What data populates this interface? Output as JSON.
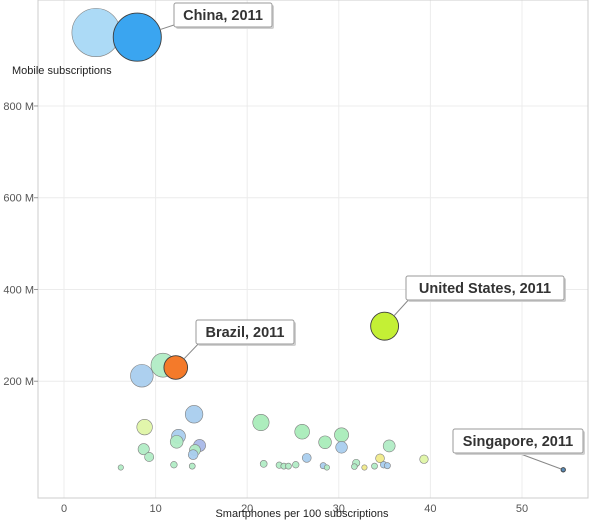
{
  "chart_data": {
    "type": "scatter",
    "subtype": "bubble",
    "xlabel": "Smartphones per 100 subscriptions",
    "ylabel": "Mobile subscriptions",
    "xlim": [
      -3,
      57
    ],
    "ylim": [
      -20,
      1000
    ],
    "x_ticks": [
      0,
      10,
      20,
      30,
      40,
      50
    ],
    "x_tick_labels": [
      "0",
      "10",
      "20",
      "30",
      "40",
      "50"
    ],
    "y_ticks": [
      200,
      400,
      600,
      800
    ],
    "y_tick_labels": [
      "200 M",
      "400 M",
      "600 M",
      "800 M"
    ],
    "grid": true,
    "legend": "none",
    "highlight_colors": {
      "China, 2011": "#3aa5f0",
      "Brazil, 2011": "#f47a2a",
      "United States, 2011": "#c4f035",
      "Singapore, 2011": "#5b8bb6"
    },
    "callouts": [
      {
        "label": "China, 2011",
        "x": 8.0,
        "y": 950
      },
      {
        "label": "Brazil, 2011",
        "x": 12.2,
        "y": 230
      },
      {
        "label": "United States, 2011",
        "x": 35.0,
        "y": 320
      },
      {
        "label": "Singapore, 2011",
        "x": 54.5,
        "y": 7
      }
    ],
    "points": [
      {
        "x": 3.5,
        "y": 960,
        "color": "#a8d8f5",
        "highlight": false
      },
      {
        "x": 8.0,
        "y": 950,
        "color": "#3aa5f0",
        "highlight": true
      },
      {
        "x": 8.5,
        "y": 212,
        "color": "#a9cdee",
        "highlight": false
      },
      {
        "x": 10.8,
        "y": 235,
        "color": "#b1ecc5",
        "highlight": false
      },
      {
        "x": 12.2,
        "y": 230,
        "color": "#f47a2a",
        "highlight": true
      },
      {
        "x": 35.0,
        "y": 320,
        "color": "#c4f035",
        "highlight": true
      },
      {
        "x": 54.5,
        "y": 7,
        "color": "#5b8bb6",
        "highlight": true
      },
      {
        "x": 8.8,
        "y": 100,
        "color": "#dff5a6",
        "highlight": false
      },
      {
        "x": 14.2,
        "y": 128,
        "color": "#a9cdee",
        "highlight": false
      },
      {
        "x": 21.5,
        "y": 110,
        "color": "#a9ecb9",
        "highlight": false
      },
      {
        "x": 12.5,
        "y": 80,
        "color": "#a9cdee",
        "highlight": false
      },
      {
        "x": 12.3,
        "y": 68,
        "color": "#b1ecc5",
        "highlight": false
      },
      {
        "x": 14.8,
        "y": 60,
        "color": "#a9b8e8",
        "highlight": false
      },
      {
        "x": 26.0,
        "y": 90,
        "color": "#a9ecb9",
        "highlight": false
      },
      {
        "x": 28.5,
        "y": 67,
        "color": "#a9ecb9",
        "highlight": false
      },
      {
        "x": 30.3,
        "y": 83,
        "color": "#a9ecb9",
        "highlight": false
      },
      {
        "x": 30.3,
        "y": 56,
        "color": "#a9cdee",
        "highlight": false
      },
      {
        "x": 35.5,
        "y": 59,
        "color": "#b1ecc5",
        "highlight": false
      },
      {
        "x": 8.7,
        "y": 52,
        "color": "#b1ecc5",
        "highlight": false
      },
      {
        "x": 14.3,
        "y": 50,
        "color": "#b1ecc5",
        "highlight": false
      },
      {
        "x": 14.1,
        "y": 40,
        "color": "#a9cdee",
        "highlight": false
      },
      {
        "x": 9.3,
        "y": 35,
        "color": "#b1ecc5",
        "highlight": false
      },
      {
        "x": 26.5,
        "y": 33,
        "color": "#a9cdee",
        "highlight": false
      },
      {
        "x": 34.5,
        "y": 32,
        "color": "#f0ea8a",
        "highlight": false
      },
      {
        "x": 39.3,
        "y": 30,
        "color": "#dff5a6",
        "highlight": false
      },
      {
        "x": 6.2,
        "y": 12,
        "color": "#b1ecc5",
        "highlight": false
      },
      {
        "x": 12.0,
        "y": 18,
        "color": "#b1ecc5",
        "highlight": false
      },
      {
        "x": 14.0,
        "y": 15,
        "color": "#b1ecc5",
        "highlight": false
      },
      {
        "x": 21.8,
        "y": 20,
        "color": "#b1ecc5",
        "highlight": false
      },
      {
        "x": 23.5,
        "y": 17,
        "color": "#b1ecc5",
        "highlight": false
      },
      {
        "x": 24.0,
        "y": 15,
        "color": "#b1ecc5",
        "highlight": false
      },
      {
        "x": 24.5,
        "y": 15,
        "color": "#b1ecc5",
        "highlight": false
      },
      {
        "x": 25.3,
        "y": 18,
        "color": "#b1ecc5",
        "highlight": false
      },
      {
        "x": 28.3,
        "y": 16,
        "color": "#a9cdee",
        "highlight": false
      },
      {
        "x": 28.7,
        "y": 12,
        "color": "#b1ecc5",
        "highlight": false
      },
      {
        "x": 31.7,
        "y": 14,
        "color": "#b1ecc5",
        "highlight": false
      },
      {
        "x": 31.9,
        "y": 22,
        "color": "#b1ecc5",
        "highlight": false
      },
      {
        "x": 32.8,
        "y": 12,
        "color": "#f0ea8a",
        "highlight": false
      },
      {
        "x": 33.9,
        "y": 15,
        "color": "#b1ecc5",
        "highlight": false
      },
      {
        "x": 34.9,
        "y": 18,
        "color": "#a9cdee",
        "highlight": false
      },
      {
        "x": 35.3,
        "y": 16,
        "color": "#a9cdee",
        "highlight": false
      }
    ]
  }
}
